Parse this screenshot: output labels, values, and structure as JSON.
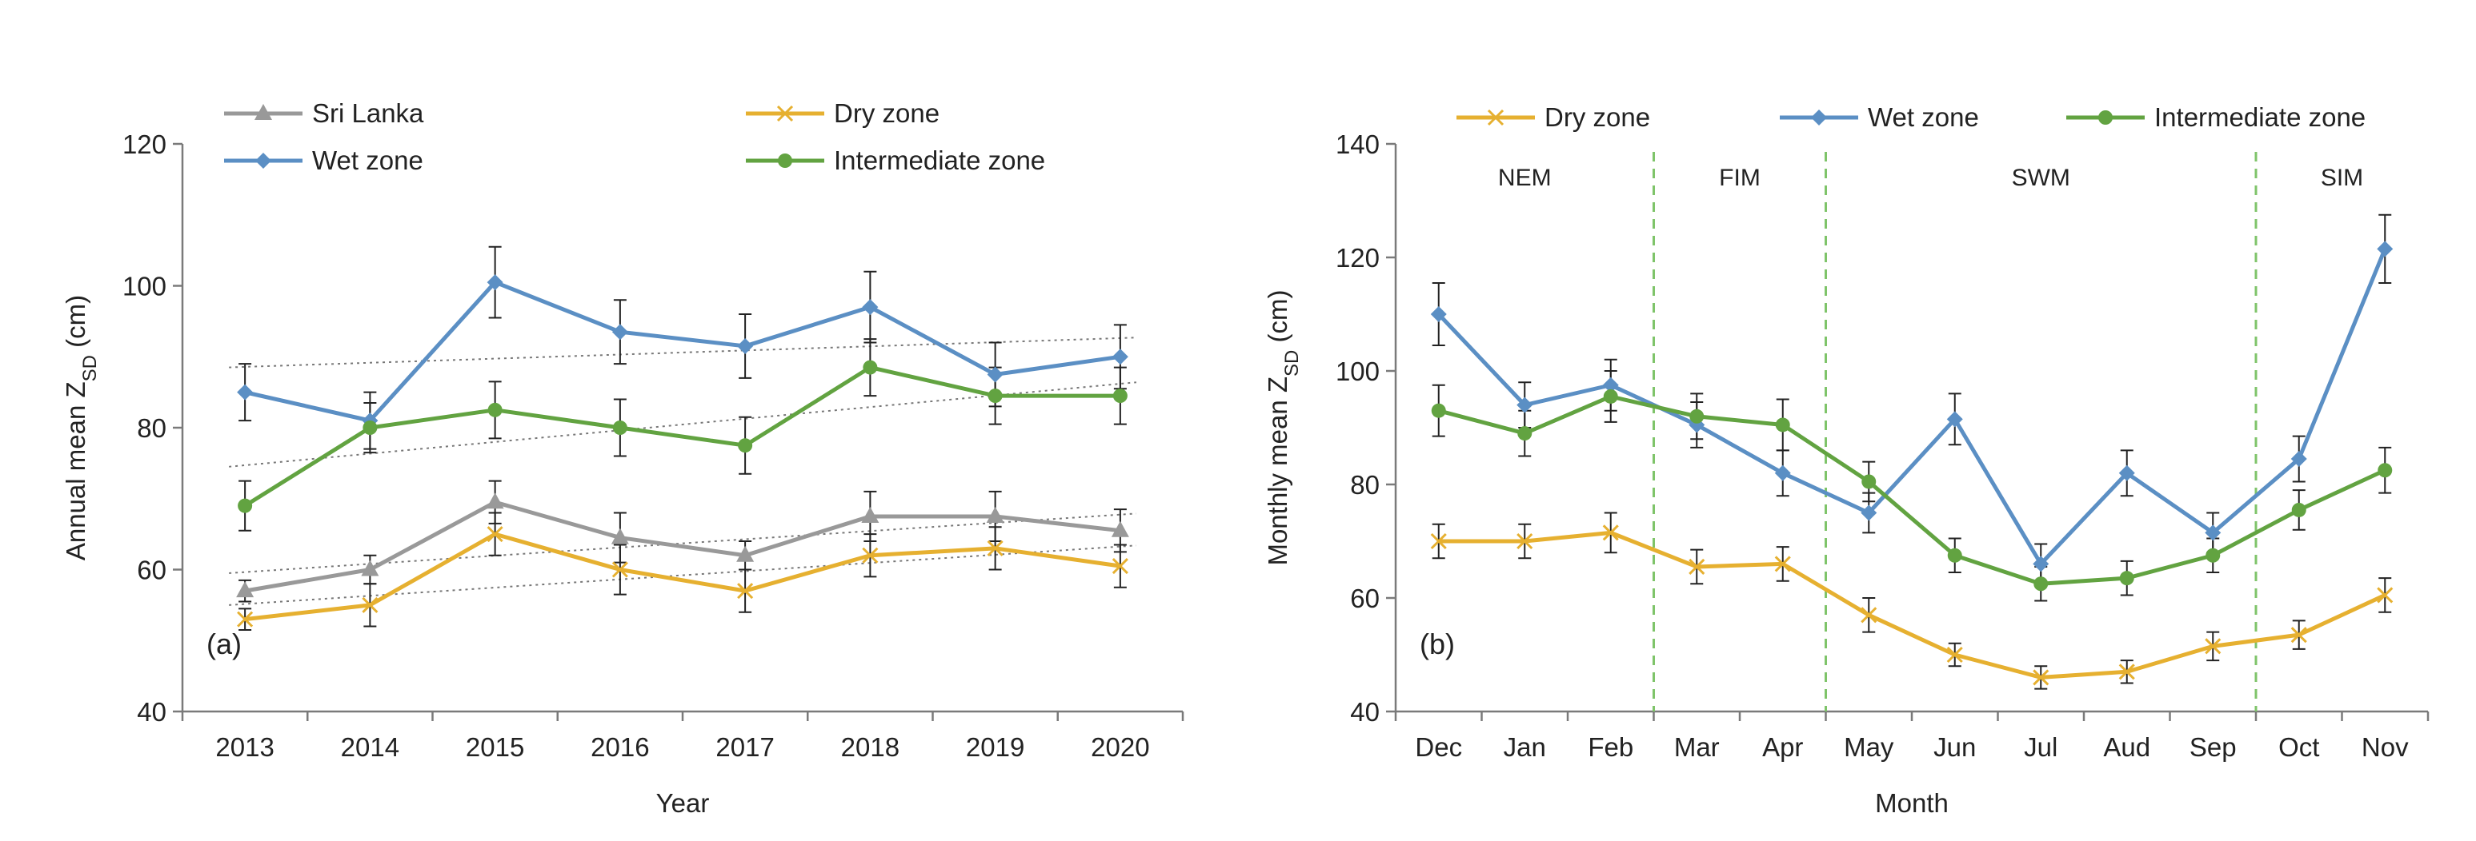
{
  "chart_data": [
    {
      "panel_label": "(a)",
      "type": "line",
      "xlabel": "Year",
      "ylabel": "Annual mean Z",
      "ylabel_sub": "SD",
      "ylabel_unit": " (cm)",
      "ylim": [
        40,
        120
      ],
      "yticks": [
        40,
        60,
        80,
        100,
        120
      ],
      "categories": [
        "2013",
        "2014",
        "2015",
        "2016",
        "2017",
        "2018",
        "2019",
        "2020"
      ],
      "legend": {
        "placement": "top",
        "columns": 2
      },
      "series": [
        {
          "name": "Sri Lanka",
          "color": "#999999",
          "marker": "triangle",
          "values": [
            57,
            60,
            69.5,
            64.5,
            62,
            67.5,
            67.5,
            65.5
          ],
          "errors": [
            1.5,
            2,
            3,
            3.5,
            2,
            3.5,
            3.5,
            3
          ],
          "trend": [
            59.5,
            60.7,
            61.9,
            63.1,
            64.3,
            65.5,
            66.7,
            67.9
          ]
        },
        {
          "name": "Dry zone",
          "color": "#e6b030",
          "marker": "x",
          "values": [
            53,
            55,
            65,
            60,
            57,
            62,
            63,
            60.5
          ],
          "errors": [
            1.5,
            3,
            3,
            3.5,
            3,
            3,
            3,
            3
          ],
          "trend": [
            55,
            56.2,
            57.4,
            58.6,
            59.8,
            61,
            62.2,
            63.4
          ]
        },
        {
          "name": "Wet zone",
          "color": "#5b8fc4",
          "marker": "diamond",
          "values": [
            85,
            81,
            100.5,
            93.5,
            91.5,
            97,
            87.5,
            90
          ],
          "errors": [
            4,
            4,
            5,
            4.5,
            4.5,
            5,
            4.5,
            4.5
          ],
          "trend": [
            88.5,
            89.1,
            89.7,
            90.3,
            90.9,
            91.5,
            92.1,
            92.7
          ]
        },
        {
          "name": "Intermediate zone",
          "color": "#62a341",
          "marker": "circle",
          "values": [
            69,
            80,
            82.5,
            80,
            77.5,
            88.5,
            84.5,
            84.5
          ],
          "errors": [
            3.5,
            3.5,
            4,
            4,
            4,
            4,
            4,
            4
          ],
          "trend": [
            74.5,
            76.2,
            77.9,
            79.6,
            81.3,
            83,
            84.7,
            86.4
          ]
        }
      ]
    },
    {
      "panel_label": "(b)",
      "type": "line",
      "xlabel": "Month",
      "ylabel": "Monthly mean Z",
      "ylabel_sub": "SD",
      "ylabel_unit": " (cm)",
      "ylim": [
        40,
        140
      ],
      "yticks": [
        40,
        60,
        80,
        100,
        120,
        140
      ],
      "categories": [
        "Dec",
        "Jan",
        "Feb",
        "Mar",
        "Apr",
        "May",
        "Jun",
        "Jul",
        "Aud",
        "Sep",
        "Oct",
        "Nov"
      ],
      "legend": {
        "placement": "top",
        "columns": 3
      },
      "seasons": [
        {
          "label": "NEM",
          "span": [
            "Dec",
            "Feb"
          ]
        },
        {
          "label": "FIM",
          "span": [
            "Mar",
            "Apr"
          ]
        },
        {
          "label": "SWM",
          "span": [
            "May",
            "Sep"
          ]
        },
        {
          "label": "SIM",
          "span": [
            "Oct",
            "Nov"
          ]
        }
      ],
      "series": [
        {
          "name": "Dry zone",
          "color": "#e6b030",
          "marker": "x",
          "values": [
            70,
            70,
            71.5,
            65.5,
            66,
            57,
            50,
            46,
            47,
            51.5,
            53.5,
            60.5
          ],
          "errors": [
            3,
            3,
            3.5,
            3,
            3,
            3,
            2,
            2,
            2,
            2.5,
            2.5,
            3
          ]
        },
        {
          "name": "Wet zone",
          "color": "#5b8fc4",
          "marker": "diamond",
          "values": [
            110,
            94,
            97.5,
            90.5,
            82,
            75,
            91.5,
            66,
            82,
            71.5,
            84.5,
            121.5
          ],
          "errors": [
            5.5,
            4,
            4.5,
            4,
            4,
            3.5,
            4.5,
            3.5,
            4,
            3.5,
            4,
            6
          ]
        },
        {
          "name": "Intermediate zone",
          "color": "#62a341",
          "marker": "circle",
          "values": [
            93,
            89,
            95.5,
            92,
            90.5,
            80.5,
            67.5,
            62.5,
            63.5,
            67.5,
            75.5,
            82.5
          ],
          "errors": [
            4.5,
            4,
            4.5,
            4,
            4.5,
            3.5,
            3,
            3,
            3,
            3,
            3.5,
            4
          ]
        }
      ]
    }
  ]
}
